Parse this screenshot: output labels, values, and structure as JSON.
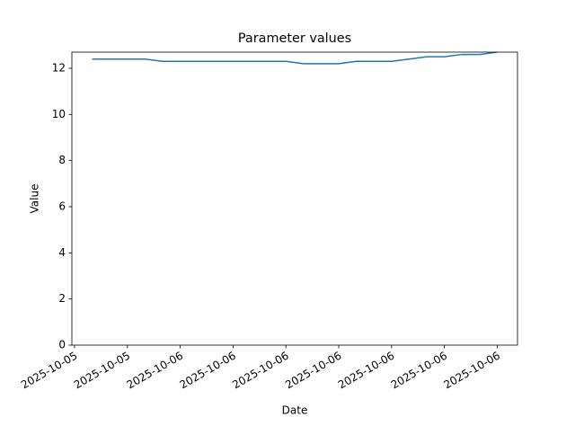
{
  "chart_data": {
    "type": "line",
    "title": "Parameter values",
    "x_label": "Date",
    "y_label": "Value",
    "x": [
      19,
      20,
      21,
      22,
      23,
      24,
      25,
      26,
      27,
      28,
      29,
      30,
      31,
      32,
      33,
      34,
      35,
      36,
      37,
      38,
      39,
      40,
      41,
      42
    ],
    "series": [
      {
        "name": "Value",
        "color": "#1f77b4",
        "values": [
          12.4,
          12.4,
          12.4,
          12.4,
          12.3,
          12.3,
          12.3,
          12.3,
          12.3,
          12.3,
          12.3,
          12.3,
          12.2,
          12.2,
          12.2,
          12.3,
          12.3,
          12.3,
          12.4,
          12.5,
          12.5,
          12.6,
          12.6,
          12.7
        ]
      }
    ],
    "xlim": [
      17.85,
      43.15
    ],
    "xticks": [
      {
        "value": 18,
        "label": "2025-10-05"
      },
      {
        "value": 21,
        "label": "2025-10-05"
      },
      {
        "value": 24,
        "label": "2025-10-06"
      },
      {
        "value": 27,
        "label": "2025-10-06"
      },
      {
        "value": 30,
        "label": "2025-10-06"
      },
      {
        "value": 33,
        "label": "2025-10-06"
      },
      {
        "value": 36,
        "label": "2025-10-06"
      },
      {
        "value": 39,
        "label": "2025-10-06"
      },
      {
        "value": 42,
        "label": "2025-10-06"
      }
    ],
    "ylim": [
      0,
      12.7
    ],
    "yticks": [
      0,
      2,
      4,
      6,
      8,
      10,
      12
    ]
  }
}
